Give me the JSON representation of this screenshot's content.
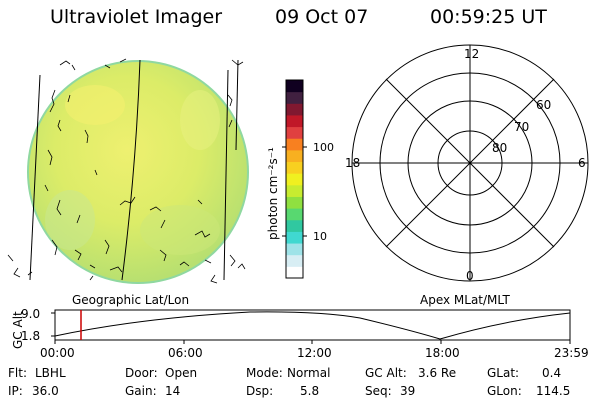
{
  "header": {
    "title": "Ultraviolet Imager",
    "date": "09 Oct 07",
    "time": "00:59:25 UT"
  },
  "colorbar": {
    "unit_label": "photon cm⁻²s⁻¹",
    "tick_labels": [
      "100",
      "10"
    ],
    "colors": [
      "#ffffff",
      "#d8eef4",
      "#9fe3e8",
      "#40d8d0",
      "#30c8a0",
      "#58d870",
      "#90e040",
      "#c8ec30",
      "#f0f020",
      "#f8d020",
      "#f8b020",
      "#f88020",
      "#e04040",
      "#c01828",
      "#801830",
      "#402040",
      "#100020"
    ]
  },
  "left_panel": {
    "caption": "Geographic Lat/Lon",
    "earth_color": "#e6f070",
    "limb_color": "#8fd8a0"
  },
  "right_panel": {
    "caption": "Apex MLat/MLT",
    "mlt_labels": {
      "top": "12",
      "left": "18",
      "right": "6",
      "bottom": "0"
    },
    "lat_labels": [
      "60",
      "70",
      "80"
    ]
  },
  "altitude_plot": {
    "ylabel": "GC Alt",
    "y_ticks": [
      "9.0",
      "1.8"
    ],
    "x_ticks": [
      "00:00",
      "06:00",
      "12:00",
      "18:00",
      "23:59"
    ],
    "marker_color": "#cc0000",
    "marker_time_hours": 0.99
  },
  "status": {
    "flt_label": "Flt:",
    "flt_value": "LBHL",
    "door_label": "Door:",
    "door_value": "Open",
    "mode_label": "Mode:",
    "mode_value": "Normal",
    "gcalt_label": "GC Alt:",
    "gcalt_value": "3.6 Re",
    "glat_label": "GLat:",
    "glat_value": "0.4",
    "ip_label": "IP:",
    "ip_value": "36.0",
    "gain_label": "Gain:",
    "gain_value": "14",
    "dsp_label": "Dsp:",
    "dsp_value": "5.8",
    "seq_label": "Seq:",
    "seq_value": "39",
    "glon_label": "GLon:",
    "glon_value": "114.5"
  }
}
